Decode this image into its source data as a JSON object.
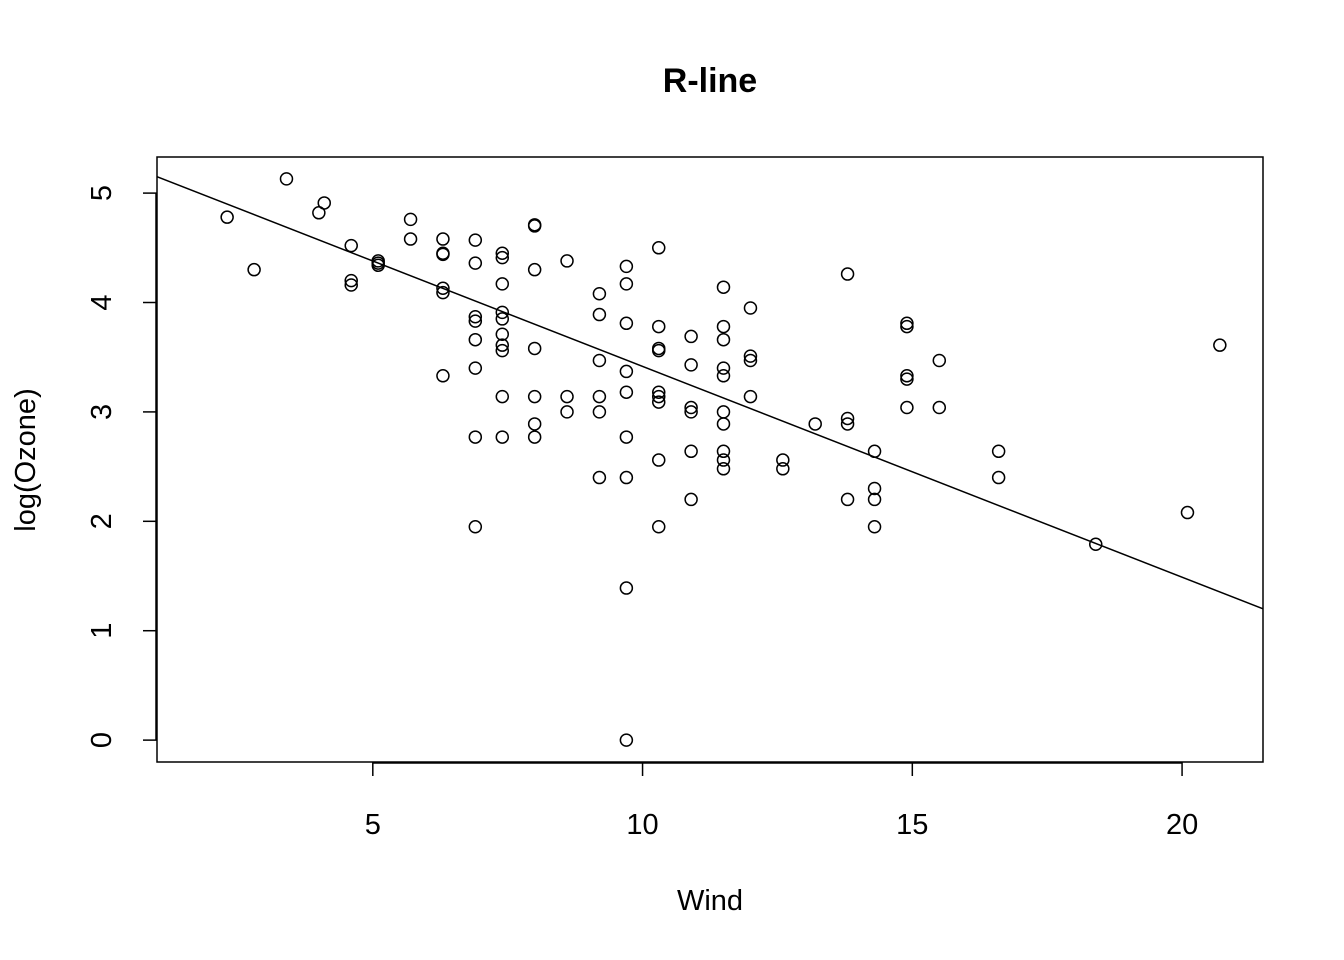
{
  "chart_data": {
    "type": "scatter",
    "title": "R-line",
    "xlabel": "Wind",
    "ylabel": "log(Ozone)",
    "xlim": [
      1,
      21.5
    ],
    "ylim": [
      -0.2,
      5.33
    ],
    "xticks": [
      5,
      10,
      15,
      20
    ],
    "yticks": [
      0,
      1,
      2,
      3,
      4,
      5
    ],
    "grid": false,
    "legend": "none",
    "marker": "open-circle",
    "colors": {
      "points": "#000000",
      "line": "#000000",
      "frame": "#000000",
      "background": "#ffffff"
    },
    "points": [
      [
        2.3,
        4.78
      ],
      [
        2.8,
        4.3
      ],
      [
        3.4,
        5.13
      ],
      [
        4.0,
        4.82
      ],
      [
        4.1,
        4.91
      ],
      [
        4.6,
        4.52
      ],
      [
        4.6,
        4.2
      ],
      [
        4.6,
        4.16
      ],
      [
        5.1,
        4.38
      ],
      [
        5.1,
        4.36
      ],
      [
        5.1,
        4.34
      ],
      [
        5.7,
        4.76
      ],
      [
        5.7,
        4.58
      ],
      [
        6.3,
        4.58
      ],
      [
        6.3,
        4.45
      ],
      [
        6.3,
        4.44
      ],
      [
        6.3,
        4.13
      ],
      [
        6.3,
        4.09
      ],
      [
        6.3,
        3.33
      ],
      [
        6.9,
        4.57
      ],
      [
        6.9,
        4.36
      ],
      [
        6.9,
        3.87
      ],
      [
        6.9,
        3.83
      ],
      [
        6.9,
        3.66
      ],
      [
        6.9,
        3.4
      ],
      [
        6.9,
        2.77
      ],
      [
        6.9,
        1.95
      ],
      [
        7.4,
        4.45
      ],
      [
        7.4,
        4.41
      ],
      [
        7.4,
        4.17
      ],
      [
        7.4,
        3.91
      ],
      [
        7.4,
        3.85
      ],
      [
        7.4,
        3.71
      ],
      [
        7.4,
        3.61
      ],
      [
        7.4,
        3.56
      ],
      [
        7.4,
        3.14
      ],
      [
        7.4,
        2.77
      ],
      [
        8.0,
        4.71
      ],
      [
        8.0,
        4.7
      ],
      [
        8.0,
        4.3
      ],
      [
        8.0,
        3.58
      ],
      [
        8.0,
        3.14
      ],
      [
        8.0,
        2.89
      ],
      [
        8.0,
        2.77
      ],
      [
        8.6,
        4.38
      ],
      [
        8.6,
        3.14
      ],
      [
        8.6,
        3.0
      ],
      [
        9.2,
        4.08
      ],
      [
        9.2,
        3.89
      ],
      [
        9.2,
        3.47
      ],
      [
        9.2,
        3.14
      ],
      [
        9.2,
        3.0
      ],
      [
        9.2,
        2.4
      ],
      [
        9.7,
        4.33
      ],
      [
        9.7,
        4.17
      ],
      [
        9.7,
        3.81
      ],
      [
        9.7,
        3.37
      ],
      [
        9.7,
        3.18
      ],
      [
        9.7,
        2.77
      ],
      [
        9.7,
        2.4
      ],
      [
        9.7,
        1.39
      ],
      [
        9.7,
        0.0
      ],
      [
        10.3,
        4.5
      ],
      [
        10.3,
        3.78
      ],
      [
        10.3,
        3.58
      ],
      [
        10.3,
        3.56
      ],
      [
        10.3,
        3.18
      ],
      [
        10.3,
        3.14
      ],
      [
        10.3,
        3.09
      ],
      [
        10.3,
        2.56
      ],
      [
        10.3,
        1.95
      ],
      [
        10.9,
        3.69
      ],
      [
        10.9,
        3.43
      ],
      [
        10.9,
        3.04
      ],
      [
        10.9,
        3.0
      ],
      [
        10.9,
        2.64
      ],
      [
        10.9,
        2.2
      ],
      [
        11.5,
        4.14
      ],
      [
        11.5,
        3.78
      ],
      [
        11.5,
        3.66
      ],
      [
        11.5,
        3.4
      ],
      [
        11.5,
        3.33
      ],
      [
        11.5,
        3.0
      ],
      [
        11.5,
        2.89
      ],
      [
        11.5,
        2.64
      ],
      [
        11.5,
        2.56
      ],
      [
        11.5,
        2.48
      ],
      [
        12.0,
        3.95
      ],
      [
        12.0,
        3.51
      ],
      [
        12.0,
        3.47
      ],
      [
        12.0,
        3.14
      ],
      [
        12.6,
        2.56
      ],
      [
        12.6,
        2.48
      ],
      [
        13.2,
        2.89
      ],
      [
        13.8,
        4.26
      ],
      [
        13.8,
        2.94
      ],
      [
        13.8,
        2.89
      ],
      [
        13.8,
        2.2
      ],
      [
        14.3,
        2.64
      ],
      [
        14.3,
        2.3
      ],
      [
        14.3,
        2.2
      ],
      [
        14.3,
        1.95
      ],
      [
        14.9,
        3.81
      ],
      [
        14.9,
        3.78
      ],
      [
        14.9,
        3.33
      ],
      [
        14.9,
        3.3
      ],
      [
        14.9,
        3.04
      ],
      [
        15.5,
        3.47
      ],
      [
        15.5,
        3.04
      ],
      [
        16.6,
        2.64
      ],
      [
        16.6,
        2.4
      ],
      [
        18.4,
        1.79
      ],
      [
        20.1,
        2.08
      ],
      [
        20.7,
        3.61
      ]
    ],
    "fit_line": {
      "x": [
        1.0,
        21.5
      ],
      "y": [
        5.15,
        1.2
      ]
    }
  }
}
